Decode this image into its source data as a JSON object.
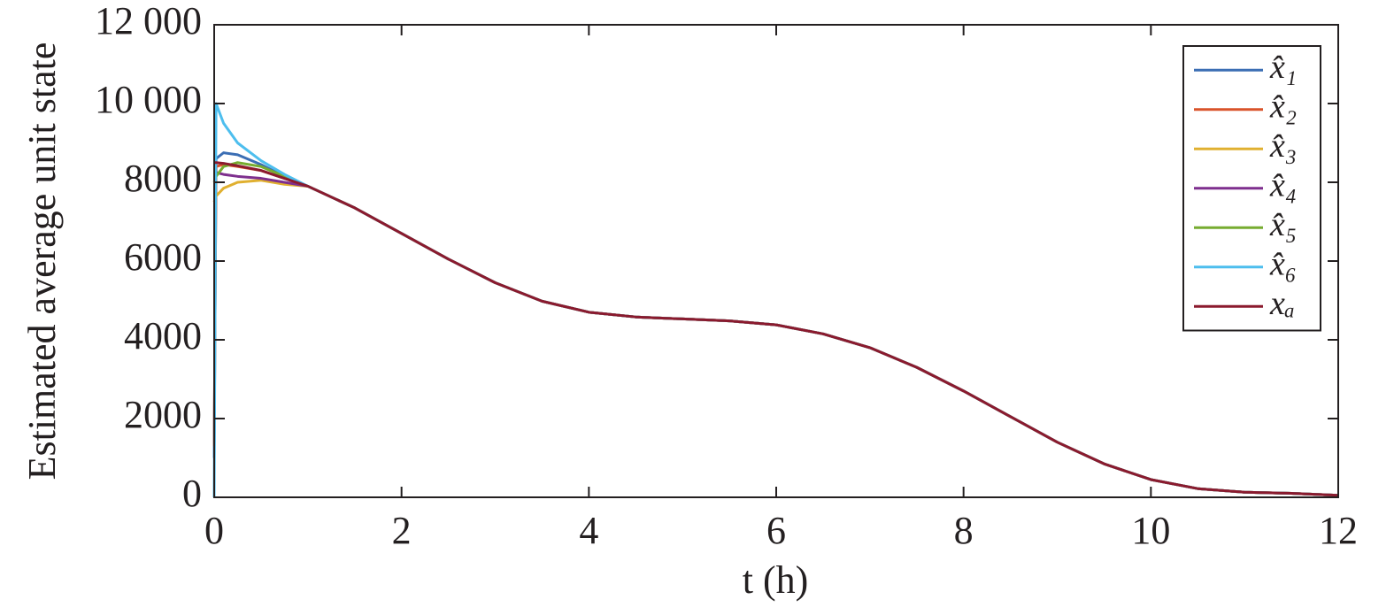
{
  "chart_data": {
    "type": "line",
    "xlabel": "t (h)",
    "ylabel": "Estimated average unit state",
    "xlim": [
      0,
      12
    ],
    "xticks": [
      0,
      2,
      4,
      6,
      8,
      10,
      12
    ],
    "ylim": [
      0,
      12000
    ],
    "yticks": [
      0,
      2000,
      4000,
      6000,
      8000,
      {
        "value": 10000,
        "label": "10 000"
      },
      {
        "value": 12000,
        "label": "12 000"
      }
    ],
    "legend": "upper right",
    "x": [
      0,
      0.02,
      0.1,
      0.25,
      0.5,
      0.75,
      1,
      1.5,
      2,
      2.5,
      3,
      3.5,
      4,
      4.5,
      5,
      5.5,
      6,
      6.5,
      7,
      7.5,
      8,
      8.5,
      9,
      9.5,
      10,
      10.5,
      11,
      11.5,
      12
    ],
    "series": [
      {
        "name": "x̂₁",
        "color": "#3b6eb4",
        "values": [
          1000,
          8600,
          8750,
          8700,
          8450,
          8150,
          7900,
          7350,
          6700,
          6050,
          5450,
          4980,
          4700,
          4580,
          4530,
          4480,
          4380,
          4150,
          3800,
          3300,
          2700,
          2050,
          1400,
          850,
          450,
          220,
          130,
          100,
          50
        ]
      },
      {
        "name": "x̂₂",
        "color": "#d9532a",
        "values": [
          1300,
          8400,
          8450,
          8400,
          8300,
          8100,
          7900,
          7350,
          6700,
          6050,
          5450,
          4980,
          4700,
          4580,
          4530,
          4480,
          4380,
          4150,
          3800,
          3300,
          2700,
          2050,
          1400,
          850,
          450,
          220,
          130,
          100,
          50
        ]
      },
      {
        "name": "x̂₃",
        "color": "#e0b030",
        "values": [
          7500,
          7650,
          7850,
          8000,
          8050,
          7950,
          7900,
          7350,
          6700,
          6050,
          5450,
          4980,
          4700,
          4580,
          4530,
          4480,
          4380,
          4150,
          3800,
          3300,
          2700,
          2050,
          1400,
          850,
          450,
          220,
          130,
          100,
          50
        ]
      },
      {
        "name": "x̂₄",
        "color": "#7e2f8e",
        "values": [
          8300,
          8250,
          8200,
          8150,
          8100,
          8000,
          7900,
          7350,
          6700,
          6050,
          5450,
          4980,
          4700,
          4580,
          4530,
          4480,
          4380,
          4150,
          3800,
          3300,
          2700,
          2050,
          1400,
          850,
          450,
          220,
          130,
          100,
          50
        ]
      },
      {
        "name": "x̂₅",
        "color": "#77ac30",
        "values": [
          8000,
          8150,
          8400,
          8500,
          8400,
          8150,
          7900,
          7350,
          6700,
          6050,
          5450,
          4980,
          4700,
          4580,
          4530,
          4480,
          4380,
          4150,
          3800,
          3300,
          2700,
          2050,
          1400,
          850,
          450,
          220,
          130,
          100,
          50
        ]
      },
      {
        "name": "x̂₆",
        "color": "#4dbeee",
        "values": [
          0,
          10000,
          9500,
          9000,
          8550,
          8200,
          7900,
          7350,
          6700,
          6050,
          5450,
          4980,
          4700,
          4580,
          4530,
          4480,
          4380,
          4150,
          3800,
          3300,
          2700,
          2050,
          1400,
          850,
          450,
          220,
          130,
          100,
          50
        ]
      },
      {
        "name": "xₐ",
        "color": "#8b1a2e",
        "values": [
          8500,
          8500,
          8480,
          8420,
          8300,
          8100,
          7900,
          7350,
          6700,
          6050,
          5450,
          4980,
          4700,
          4580,
          4530,
          4480,
          4380,
          4150,
          3800,
          3300,
          2700,
          2050,
          1400,
          850,
          450,
          220,
          130,
          100,
          50
        ]
      }
    ]
  }
}
